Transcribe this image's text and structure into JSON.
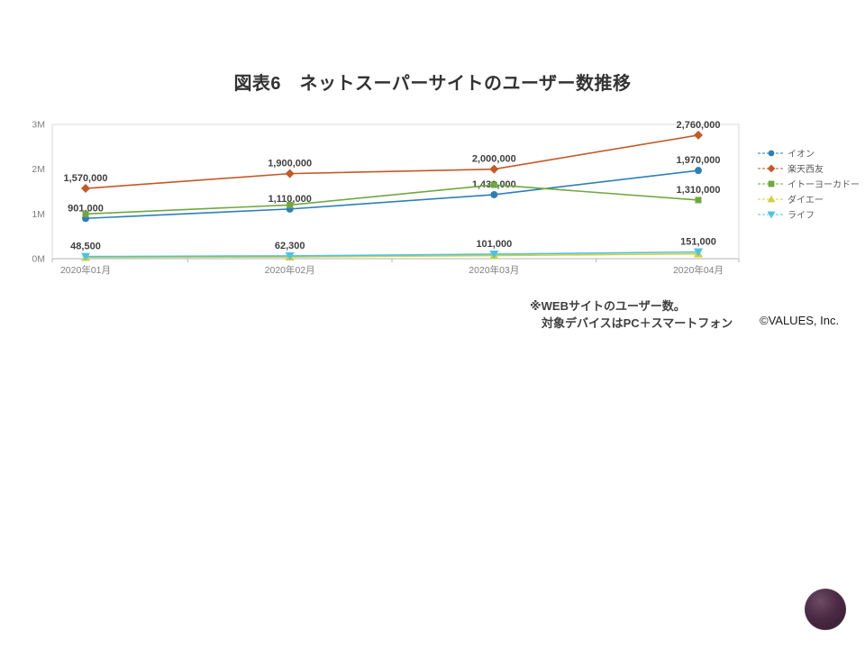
{
  "title": "図表6　ネットスーパーサイトのユーザー数推移",
  "note": {
    "line1": "※WEBサイトのユーザー数。",
    "line2": "対象デバイスはPC＋スマートフォン"
  },
  "copyright": "©VALUES, Inc.",
  "chart_data": {
    "type": "line",
    "categories": [
      "2020年01月",
      "2020年02月",
      "2020年03月",
      "2020年04月"
    ],
    "y_ticks": [
      "0M",
      "1M",
      "2M",
      "3M"
    ],
    "ylim": [
      0,
      3000000
    ],
    "grid": false,
    "legend_position": "right",
    "axis_color": "#d9d9d9",
    "tick_label_color": "#7f7f7f",
    "data_label_color": "#3f3f3f",
    "series": [
      {
        "name": "イオン",
        "color": "#2e7fb8",
        "marker": "circle",
        "values": [
          901000,
          1110000,
          1430000,
          1970000
        ],
        "labels": [
          "901,000",
          "1,110,000",
          "1,430,000",
          "1,970,000"
        ]
      },
      {
        "name": "楽天西友",
        "color": "#c45928",
        "marker": "diamond",
        "values": [
          1570000,
          1900000,
          2000000,
          2760000
        ],
        "labels": [
          "1,570,000",
          "1,900,000",
          "2,000,000",
          "2,760,000"
        ]
      },
      {
        "name": "イトーヨーカドー",
        "color": "#6fa83f",
        "marker": "square",
        "values": [
          1000000,
          1200000,
          1650000,
          1310000
        ],
        "labels": [
          null,
          null,
          null,
          "1,310,000"
        ]
      },
      {
        "name": "ダイエー",
        "color": "#d4cf3a",
        "marker": "triangle",
        "values": [
          30000,
          40000,
          70000,
          110000
        ],
        "labels": [
          null,
          null,
          null,
          null
        ]
      },
      {
        "name": "ライフ",
        "color": "#4ec3e0",
        "marker": "triangle-down",
        "values": [
          48500,
          62300,
          101000,
          151000
        ],
        "labels": [
          "48,500",
          "62,300",
          "101,000",
          "151,000"
        ]
      }
    ]
  }
}
